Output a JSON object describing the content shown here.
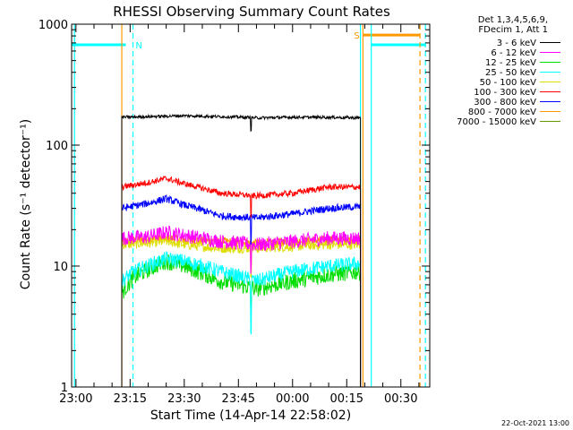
{
  "chart_data": {
    "type": "line",
    "title": "RHESSI Observing Summary Count Rates",
    "xlabel": "Start Time (14-Apr-14 22:58:02)",
    "ylabel": "Count Rate (s⁻¹ detector⁻¹)",
    "y_scale": "log",
    "ylim": [
      1,
      1000
    ],
    "xlim_minutes_from_2300": [
      -1.2,
      98
    ],
    "x_ticks": [
      {
        "label": "23:00",
        "min": 0
      },
      {
        "label": "23:15",
        "min": 15
      },
      {
        "label": "23:30",
        "min": 30
      },
      {
        "label": "23:45",
        "min": 45
      },
      {
        "label": "00:00",
        "min": 60
      },
      {
        "label": "00:15",
        "min": 75
      },
      {
        "label": "00:30",
        "min": 90
      }
    ],
    "y_ticks": [
      {
        "label": "1",
        "value": 1
      },
      {
        "label": "10",
        "value": 10
      },
      {
        "label": "100",
        "value": 100
      },
      {
        "label": "1000",
        "value": 1000
      }
    ],
    "legend_header": [
      "Det 1,3,4,5,6,9,",
      "FDecim 1, Att 1"
    ],
    "legend_placement": "right",
    "grid": false,
    "data_start_min": 12.7,
    "data_end_min": 78.8,
    "series": [
      {
        "name": "3 - 6 keV",
        "color": "#000000",
        "profile": [
          [
            12.7,
            170
          ],
          [
            20,
            172
          ],
          [
            30,
            175
          ],
          [
            40,
            172
          ],
          [
            47,
            170
          ],
          [
            50,
            168
          ],
          [
            60,
            170
          ],
          [
            70,
            170
          ],
          [
            78.8,
            168
          ]
        ]
      },
      {
        "name": "6 - 12 keV",
        "color": "#ff00ff",
        "profile": [
          [
            12.7,
            17
          ],
          [
            20,
            17.5
          ],
          [
            25,
            19
          ],
          [
            30,
            18
          ],
          [
            40,
            16
          ],
          [
            50,
            15
          ],
          [
            60,
            16
          ],
          [
            70,
            17
          ],
          [
            78.8,
            17
          ]
        ]
      },
      {
        "name": "12 - 25 keV",
        "color": "#00dd00",
        "profile": [
          [
            12.7,
            6
          ],
          [
            16,
            8
          ],
          [
            25,
            11
          ],
          [
            30,
            10
          ],
          [
            40,
            7.5
          ],
          [
            50,
            6.5
          ],
          [
            60,
            7.5
          ],
          [
            70,
            8.5
          ],
          [
            78.8,
            9
          ]
        ]
      },
      {
        "name": "25 - 50 keV",
        "color": "#00ffff",
        "profile": [
          [
            12.7,
            7.5
          ],
          [
            16,
            9
          ],
          [
            25,
            11.5
          ],
          [
            30,
            11
          ],
          [
            40,
            9
          ],
          [
            50,
            7.5
          ],
          [
            60,
            9
          ],
          [
            70,
            10
          ],
          [
            78.8,
            10.5
          ]
        ]
      },
      {
        "name": "50 - 100 keV",
        "color": "#dddd00",
        "profile": [
          [
            12.7,
            15
          ],
          [
            20,
            15.5
          ],
          [
            25,
            16
          ],
          [
            30,
            15
          ],
          [
            40,
            14
          ],
          [
            50,
            14
          ],
          [
            60,
            14.5
          ],
          [
            70,
            15
          ],
          [
            78.8,
            15
          ]
        ]
      },
      {
        "name": "100 - 300 keV",
        "color": "#ff0000",
        "profile": [
          [
            12.7,
            45
          ],
          [
            20,
            49
          ],
          [
            25,
            53
          ],
          [
            30,
            48
          ],
          [
            40,
            40
          ],
          [
            50,
            38
          ],
          [
            60,
            40
          ],
          [
            70,
            45
          ],
          [
            78.8,
            45
          ]
        ]
      },
      {
        "name": "300 - 800 keV",
        "color": "#0000ff",
        "profile": [
          [
            12.7,
            30
          ],
          [
            20,
            33
          ],
          [
            25,
            36
          ],
          [
            30,
            32
          ],
          [
            40,
            26
          ],
          [
            50,
            25
          ],
          [
            60,
            27
          ],
          [
            70,
            30
          ],
          [
            78.8,
            31
          ]
        ]
      },
      {
        "name": "800 - 7000 keV",
        "color": "#ff9900",
        "profile": [
          [
            12.7,
            16
          ],
          [
            20,
            16.5
          ],
          [
            25,
            17
          ],
          [
            30,
            16.5
          ],
          [
            40,
            16
          ],
          [
            50,
            15.5
          ],
          [
            60,
            16
          ],
          [
            70,
            16.5
          ],
          [
            78.8,
            16.5
          ]
        ]
      },
      {
        "name": "7000 - 15000 keV",
        "color": "#669900",
        "profile": []
      }
    ],
    "flag_labels": {
      "north": "N",
      "saa": "S"
    },
    "flags": [
      {
        "kind": "north",
        "color": "#00ffff",
        "band_log": 2.83,
        "from_min": -1.2,
        "to_min": 13.8
      },
      {
        "kind": "north",
        "color": "#00ffff",
        "band_log": 2.83,
        "from_min": 81.8,
        "to_min": 96.8
      },
      {
        "kind": "saa",
        "color": "#ff9900",
        "band_log": 2.91,
        "from_min": 79.5,
        "to_min": 95.3
      }
    ],
    "vlines": [
      {
        "color": "#00ffff",
        "style": "solid",
        "min": -0.4
      },
      {
        "color": "#00ffff",
        "style": "dashed",
        "min": 15.8
      },
      {
        "color": "#ff9900",
        "style": "solid",
        "min": 12.7
      },
      {
        "color": "#ff9900",
        "style": "solid",
        "min": 79.5
      },
      {
        "color": "#00ffff",
        "style": "solid",
        "min": 78.8
      },
      {
        "color": "#00ffff",
        "style": "solid",
        "min": 81.8
      },
      {
        "color": "#ff9900",
        "style": "dashed",
        "min": 95.3
      },
      {
        "color": "#00ffff",
        "style": "dashed",
        "min": 96.8
      }
    ]
  },
  "footer": {
    "date_stamp": "22-Oct-2021 13:00"
  }
}
